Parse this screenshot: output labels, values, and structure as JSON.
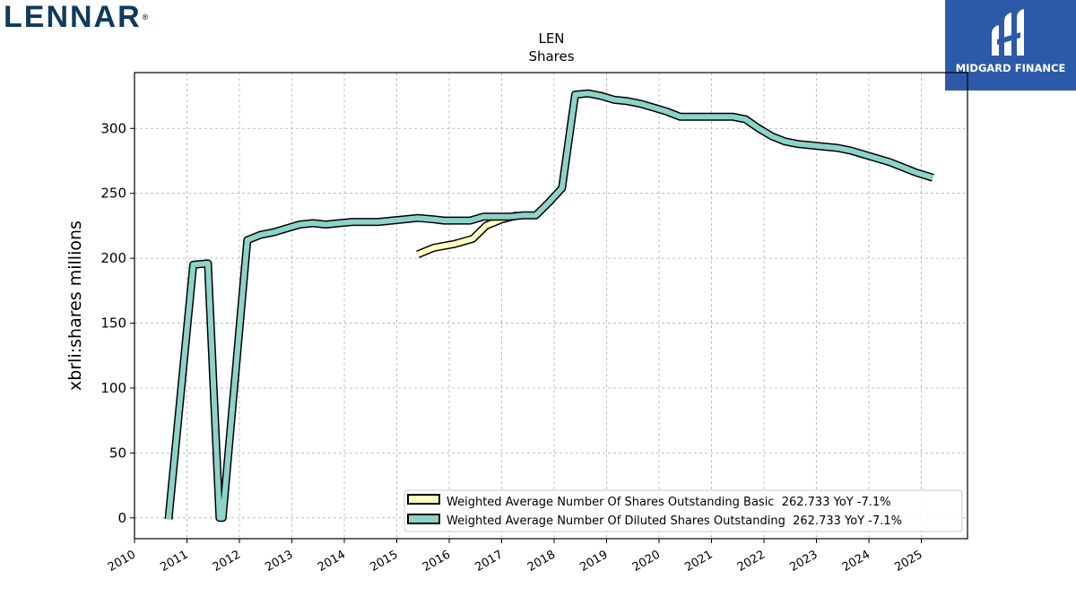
{
  "header": {
    "brand": "LENNAR",
    "badge_text": "MIDGARD FINANCE"
  },
  "chart_data": {
    "type": "line",
    "title": "LEN",
    "subtitle": "Shares",
    "ylabel": "xbrli:shares millions",
    "xlabel": "",
    "xlim": [
      2010.0,
      2025.88
    ],
    "ylim": [
      -16,
      343
    ],
    "grid": true,
    "legend_position": "lower-right",
    "x_ticks": [
      "2010",
      "2011",
      "2012",
      "2013",
      "2014",
      "2015",
      "2016",
      "2017",
      "2018",
      "2019",
      "2020",
      "2021",
      "2022",
      "2023",
      "2024",
      "2025"
    ],
    "y_ticks": [
      0,
      50,
      100,
      150,
      200,
      250,
      300
    ],
    "series": [
      {
        "name": "Weighted Average Number Of Shares Outstanding Basic",
        "legend_label": "Weighted Average Number Of Shares Outstanding Basic  262.733 YoY -7.1%",
        "color": "#ffffc0",
        "x": [
          2015.4,
          2015.7,
          2016.1,
          2016.45,
          2016.7,
          2017.0,
          2017.3
        ],
        "y": [
          203,
          208,
          211,
          215,
          225,
          230,
          233
        ]
      },
      {
        "name": "Weighted Average Number Of Diluted Shares Outstanding",
        "legend_label": "Weighted Average Number Of Diluted Shares Outstanding  262.733 YoY -7.1%",
        "color": "#8dd3c7",
        "x": [
          2010.65,
          2011.12,
          2011.4,
          2011.62,
          2011.68,
          2012.15,
          2012.4,
          2012.65,
          2012.9,
          2013.15,
          2013.4,
          2013.65,
          2013.9,
          2014.15,
          2014.4,
          2014.65,
          2014.9,
          2015.15,
          2015.4,
          2015.7,
          2015.9,
          2016.15,
          2016.4,
          2016.65,
          2016.9,
          2017.15,
          2017.4,
          2017.65,
          2017.9,
          2018.15,
          2018.4,
          2018.65,
          2018.9,
          2019.15,
          2019.4,
          2019.65,
          2019.9,
          2020.15,
          2020.4,
          2020.65,
          2020.9,
          2021.15,
          2021.4,
          2021.65,
          2021.9,
          2022.15,
          2022.4,
          2022.65,
          2022.9,
          2023.15,
          2023.4,
          2023.65,
          2023.9,
          2024.15,
          2024.4,
          2024.65,
          2024.9,
          2025.22
        ],
        "y": [
          -1,
          195,
          196,
          0,
          0,
          214,
          218,
          220,
          223,
          226,
          227,
          226,
          227,
          228,
          228,
          228,
          229,
          230,
          231,
          230,
          229,
          229,
          229,
          232,
          232,
          232,
          233,
          233,
          243,
          254,
          326,
          327,
          325,
          322,
          321,
          319,
          316,
          313,
          309,
          309,
          309,
          309,
          309,
          307,
          300,
          294,
          290,
          288,
          287,
          286,
          285,
          283,
          280,
          277,
          274,
          270,
          266,
          262
        ]
      }
    ]
  }
}
